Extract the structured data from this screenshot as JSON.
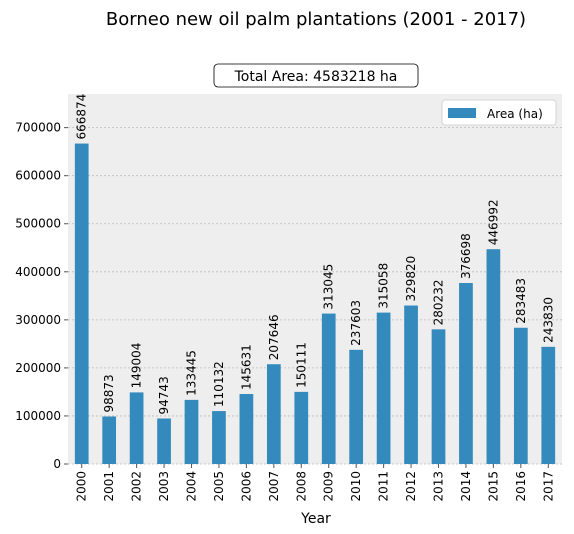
{
  "chart_data": {
    "type": "bar",
    "title": "Borneo new oil palm plantations (2001 - 2017)",
    "annotation": "Total Area: 4583218 ha",
    "xlabel": "Year",
    "ylabel": "",
    "legend": {
      "label": "Area (ha)",
      "placement": "top-right"
    },
    "categories": [
      "2000",
      "2001",
      "2002",
      "2003",
      "2004",
      "2005",
      "2006",
      "2007",
      "2008",
      "2009",
      "2010",
      "2011",
      "2012",
      "2013",
      "2014",
      "2015",
      "2016",
      "2017"
    ],
    "values": [
      666874,
      98873,
      149004,
      94743,
      133445,
      110132,
      145631,
      207646,
      150111,
      313045,
      237603,
      315058,
      329820,
      280232,
      376698,
      446992,
      283483,
      243830
    ],
    "data_labels": [
      "666874",
      "98873",
      "149004",
      "94743",
      "133445",
      "110132",
      "145631",
      "207646",
      "150111",
      "313045",
      "237603",
      "315058",
      "329820",
      "280232",
      "376698",
      "446992",
      "283483",
      "243830"
    ],
    "ylim": [
      0,
      770000
    ],
    "yticks": [
      0,
      100000,
      200000,
      300000,
      400000,
      500000,
      600000,
      700000
    ],
    "ytick_labels": [
      "0",
      "100000",
      "200000",
      "300000",
      "400000",
      "500000",
      "600000",
      "700000"
    ],
    "grid": true,
    "bar_color": "#348ABD",
    "background_color": "#EEEEEE",
    "grid_color": "#BBBBBB"
  }
}
